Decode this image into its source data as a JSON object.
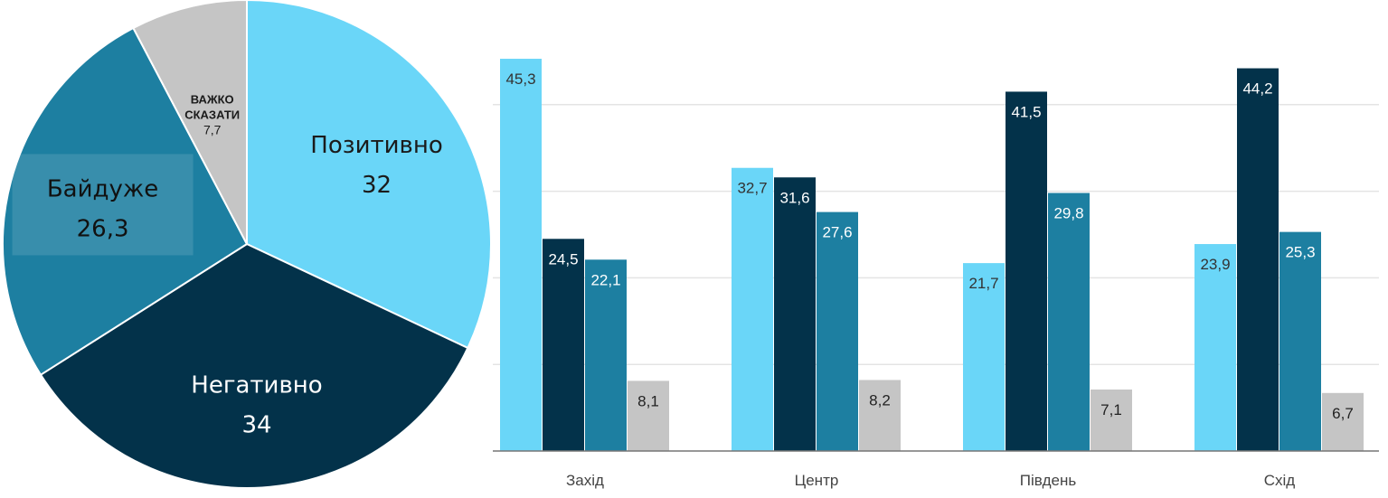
{
  "colors": {
    "positive": "#6ad6f8",
    "negative": "#03324a",
    "indifferent": "#1d7fa1",
    "hard_to_say": "#c5c5c5",
    "grid": "#e4e4e4",
    "axis": "#777777"
  },
  "chart_data": [
    {
      "type": "pie",
      "slices": [
        {
          "label": "Позитивно",
          "value": 32,
          "display": "32",
          "color": "#6ad6f8"
        },
        {
          "label": "Негативно",
          "value": 34,
          "display": "34",
          "color": "#03324a"
        },
        {
          "label": "Байдуже",
          "value": 26.3,
          "display": "26,3",
          "color": "#1d7fa1"
        },
        {
          "label_lines": [
            "ВАЖКО",
            "СКАЗАТИ"
          ],
          "value": 7.7,
          "display": "7,7",
          "color": "#c5c5c5"
        }
      ]
    },
    {
      "type": "bar",
      "categories": [
        "Захід",
        "Центр",
        "Південь",
        "Схід"
      ],
      "series": [
        {
          "values": [
            45.3,
            32.7,
            21.7,
            23.9
          ],
          "display": [
            "45,3",
            "32,7",
            "21,7",
            "23,9"
          ],
          "color": "#6ad6f8"
        },
        {
          "values": [
            24.5,
            31.6,
            41.5,
            44.2
          ],
          "display": [
            "24,5",
            "31,6",
            "41,5",
            "44,2"
          ],
          "color": "#03324a"
        },
        {
          "values": [
            22.1,
            27.6,
            29.8,
            25.3
          ],
          "display": [
            "22,1",
            "27,6",
            "29,8",
            "25,3"
          ],
          "color": "#1d7fa1"
        },
        {
          "values": [
            8.1,
            8.2,
            7.1,
            6.7
          ],
          "display": [
            "8,1",
            "8,2",
            "7,1",
            "6,7"
          ],
          "color": "#c5c5c5"
        }
      ],
      "ylim": [
        0,
        50
      ],
      "gridlines": [
        10,
        20,
        30,
        40
      ],
      "grid": true,
      "legend": "none"
    }
  ]
}
